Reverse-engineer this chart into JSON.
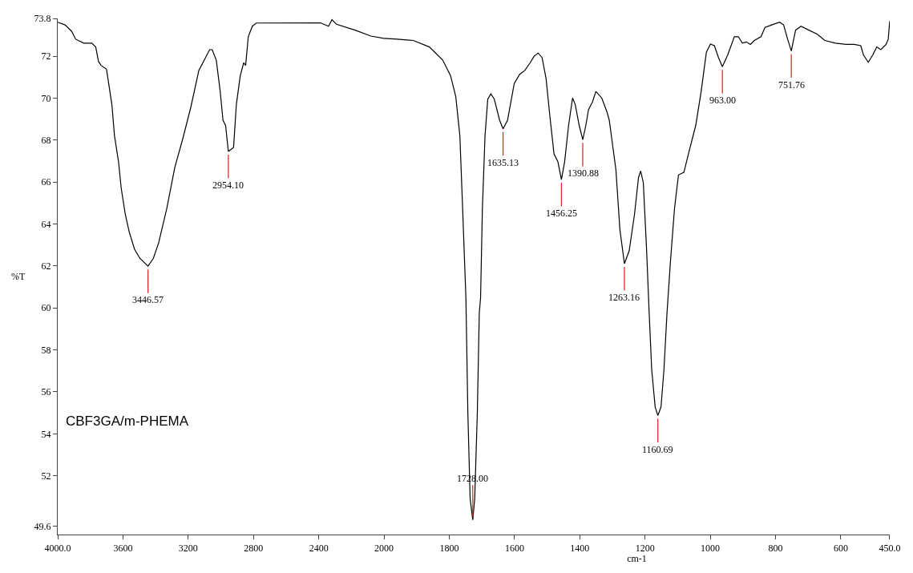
{
  "chart_data": [
    {
      "type": "line",
      "ylabel": "%T",
      "xlim": [
        4000,
        2000
      ],
      "ylim": [
        49.2,
        73.8
      ],
      "xticks": [
        {
          "value": 4000,
          "label": "4000.0"
        },
        3600,
        3200,
        2800,
        2400,
        2000
      ],
      "yticks": [
        {
          "value": 49.6,
          "label": "49.6"
        },
        52,
        54,
        56,
        58,
        60,
        62,
        64,
        66,
        68,
        70,
        72,
        {
          "value": 73.8,
          "label": "73.8"
        }
      ],
      "marker": "none",
      "line_style": "solid",
      "x": [
        4000,
        3955,
        3914,
        3890,
        3840,
        3791,
        3767,
        3750,
        3734,
        3701,
        3685,
        3668,
        3652,
        3627,
        3611,
        3586,
        3561,
        3529,
        3496,
        3446.57,
        3414,
        3381,
        3332,
        3282,
        3233,
        3184,
        3135,
        3069,
        3053,
        3028,
        3004,
        2987,
        2971,
        2954.1,
        2922,
        2905,
        2881,
        2860,
        2848,
        2832,
        2807,
        2783,
        2389,
        2340,
        2319,
        2291,
        2177,
        2080,
        2000
      ],
      "series": [
        {
          "color": "#000000",
          "values": [
            73.62,
            73.49,
            73.18,
            72.81,
            72.62,
            72.62,
            72.44,
            71.75,
            71.56,
            71.38,
            70.57,
            69.7,
            68.21,
            66.96,
            65.72,
            64.47,
            63.6,
            62.8,
            62.36,
            61.99,
            62.36,
            63.11,
            64.72,
            66.71,
            68.08,
            69.57,
            71.32,
            72.31,
            72.31,
            71.81,
            70.32,
            68.95,
            68.7,
            67.46,
            67.65,
            69.7,
            71.07,
            71.69,
            71.56,
            72.93,
            73.43,
            73.58,
            73.59,
            73.43,
            73.74,
            73.52,
            73.24,
            72.96,
            72.85
          ]
        }
      ],
      "annotations": [
        "CBF3GA/m-PHEMA",
        {
          "text": "3446.57",
          "x": 3446.57,
          "y": 61.99
        },
        {
          "text": "2954.10",
          "x": 2954.1,
          "y": 67.46
        }
      ]
    },
    {
      "type": "line",
      "xlabel": "cm-1",
      "xlim": [
        2000,
        450
      ],
      "ylim": [
        49.2,
        73.8
      ],
      "xticks": [
        1800,
        1600,
        1400,
        1200,
        1000,
        800,
        600,
        {
          "value": 450,
          "label": "450.0"
        }
      ],
      "tick_labels": "x",
      "marker": "none",
      "line_style": "solid",
      "x": [
        2000,
        1958.5,
        1910,
        1861,
        1820,
        1796,
        1780,
        1767.5,
        1759,
        1749,
        1743,
        1736,
        1728,
        1722,
        1714,
        1708,
        1704,
        1698.5,
        1690.4,
        1682,
        1672.5,
        1662,
        1645.7,
        1635.13,
        1621.3,
        1601,
        1584.7,
        1568.4,
        1552,
        1540,
        1527.8,
        1515.6,
        1503.4,
        1491.2,
        1479,
        1466.9,
        1456.25,
        1446.5,
        1434.3,
        1422.1,
        1414,
        1401.8,
        1390.88,
        1381.5,
        1373.3,
        1361.1,
        1350.6,
        1332.7,
        1316.4,
        1309.6,
        1289.3,
        1277,
        1263.16,
        1248.5,
        1232.2,
        1220,
        1213.4,
        1205.3,
        1195.5,
        1187.3,
        1179.6,
        1169,
        1160.69,
        1151,
        1142,
        1132.7,
        1122,
        1109.8,
        1097.6,
        1081,
        1065,
        1044.6,
        1028,
        1012,
        999.7,
        987.5,
        975,
        963,
        946.7,
        926.3,
        914,
        901.8,
        889.4,
        877,
        865,
        844.6,
        832.3,
        812,
        787.5,
        775.3,
        763,
        751.76,
        738.6,
        722.2,
        697.8,
        673.3,
        648.9,
        616.2,
        583.6,
        559.1,
        538.7,
        530.6,
        515.9,
        502,
        489.8,
        477.5,
        461.2,
        454.7,
        450
      ],
      "series": [
        {
          "color": "#000000",
          "values": [
            72.85,
            72.81,
            72.75,
            72.44,
            71.81,
            71.07,
            70.07,
            68.21,
            64.72,
            60.5,
            55.0,
            50.9,
            49.9,
            50.9,
            55.0,
            59.75,
            60.5,
            64.72,
            68.21,
            69.95,
            70.2,
            69.95,
            68.95,
            68.54,
            68.95,
            70.69,
            71.13,
            71.32,
            71.69,
            72.0,
            72.15,
            71.94,
            70.94,
            69.08,
            67.34,
            66.96,
            66.12,
            66.96,
            68.7,
            70.01,
            69.7,
            68.7,
            68.02,
            68.7,
            69.45,
            69.82,
            70.32,
            70.01,
            69.33,
            68.95,
            66.59,
            63.73,
            62.11,
            62.73,
            64.47,
            66.22,
            66.53,
            65.97,
            62.86,
            59.75,
            57.07,
            55.28,
            54.87,
            55.28,
            57.07,
            59.75,
            62.24,
            64.72,
            66.34,
            66.46,
            67.46,
            68.7,
            70.32,
            72.19,
            72.58,
            72.5,
            71.94,
            71.5,
            72.06,
            72.93,
            72.93,
            72.62,
            72.68,
            72.56,
            72.75,
            72.93,
            73.37,
            73.49,
            73.62,
            73.49,
            72.81,
            72.25,
            73.24,
            73.43,
            73.24,
            73.06,
            72.75,
            72.62,
            72.56,
            72.56,
            72.5,
            72.06,
            71.71,
            72.06,
            72.44,
            72.31,
            72.56,
            72.81,
            73.68
          ]
        }
      ],
      "annotations": [
        {
          "text": "1728.00",
          "x": 1728,
          "y": 49.9
        },
        {
          "text": "1635.13",
          "x": 1635.13,
          "y": 68.54
        },
        {
          "text": "1456.25",
          "x": 1456.25,
          "y": 66.12
        },
        {
          "text": "1390.88",
          "x": 1390.88,
          "y": 68.02
        },
        {
          "text": "1263.16",
          "x": 1263.16,
          "y": 62.11
        },
        {
          "text": "1160.69",
          "x": 1160.69,
          "y": 54.87
        },
        {
          "text": "963.00",
          "x": 963,
          "y": 71.5
        },
        {
          "text": "751.76",
          "x": 751.76,
          "y": 72.25
        }
      ]
    }
  ]
}
